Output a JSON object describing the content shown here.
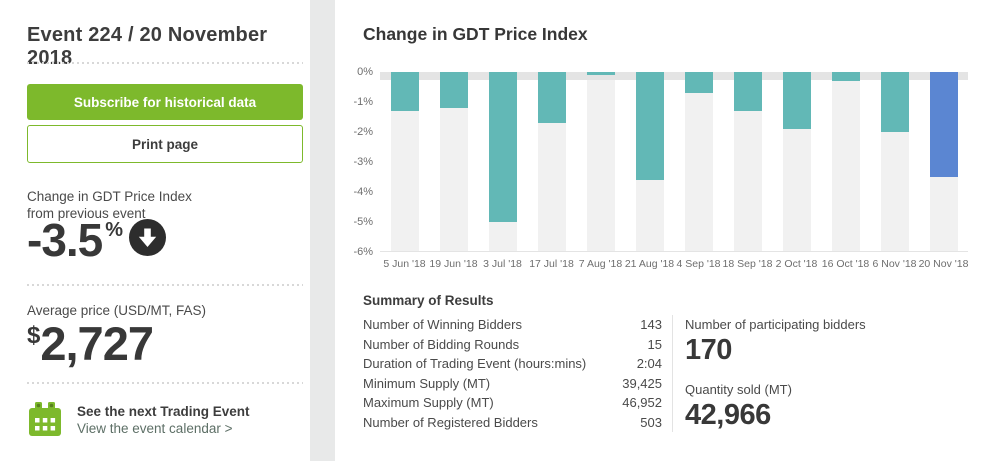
{
  "sidebar": {
    "title": "Event 224 / 20 November 2018",
    "subscribe_button": "Subscribe for historical data",
    "print_button": "Print page",
    "change_label_line1": "Change in GDT Price Index",
    "change_label_line2": "from previous event",
    "change_value": "-3.5",
    "change_unit": "%",
    "avg_price_label": "Average price (USD/MT, FAS)",
    "avg_price_currency": "$",
    "avg_price_value": "2,727",
    "next_event_title": "See the next Trading Event",
    "next_event_link": "View the event calendar >"
  },
  "chart": {
    "title": "Change in GDT Price Index"
  },
  "chart_data": {
    "type": "bar",
    "title": "Change in GDT Price Index",
    "categories": [
      "5 Jun '18",
      "19 Jun '18",
      "3 Jul '18",
      "17 Jul '18",
      "7 Aug '18",
      "21 Aug '18",
      "4 Sep '18",
      "18 Sep '18",
      "2 Oct '18",
      "16 Oct '18",
      "6 Nov '18",
      "20 Nov '18"
    ],
    "values": [
      -1.3,
      -1.2,
      -5.0,
      -1.7,
      -0.1,
      -3.6,
      -0.7,
      -1.3,
      -1.9,
      -0.3,
      -2.0,
      -3.5
    ],
    "xlabel": "",
    "ylabel": "",
    "ylim": [
      -6,
      0
    ],
    "ytick_labels": [
      "0%",
      "-1%",
      "-2%",
      "-3%",
      "-4%",
      "-5%",
      "-6%"
    ],
    "grid": false,
    "legend": false,
    "bar_color": "#62b8b6",
    "highlight_color": "#5b86d2",
    "highlight_index": 11
  },
  "summary": {
    "heading": "Summary of Results",
    "rows": [
      {
        "label": "Number of Winning Bidders",
        "value": "143"
      },
      {
        "label": "Number of Bidding Rounds",
        "value": "15"
      },
      {
        "label": "Duration of Trading Event (hours:mins)",
        "value": "2:04"
      },
      {
        "label": "Minimum Supply (MT)",
        "value": "39,425"
      },
      {
        "label": "Maximum Supply (MT)",
        "value": "46,952"
      },
      {
        "label": "Number of Registered Bidders",
        "value": "503"
      }
    ],
    "stats": [
      {
        "label": "Number of participating bidders",
        "value": "170"
      },
      {
        "label": "Quantity sold (MT)",
        "value": "42,966"
      }
    ]
  },
  "colors": {
    "accent_green": "#7db92c",
    "bar_teal": "#62b8b6",
    "bar_blue": "#5b86d2",
    "icon_dark": "#2d2d2d"
  }
}
